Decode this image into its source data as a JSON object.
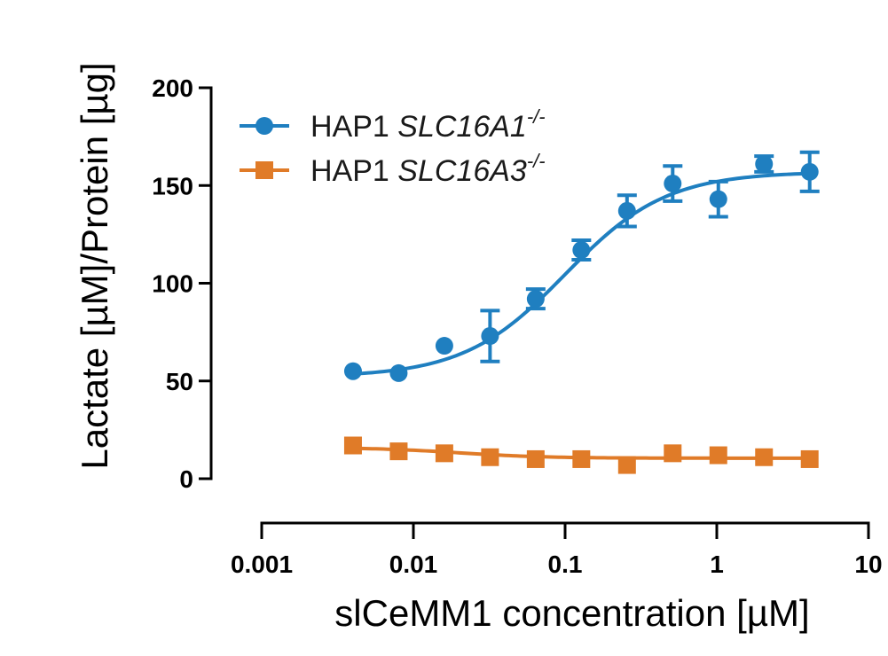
{
  "chart_data": {
    "type": "scatter",
    "title": "",
    "xlabel": "slCeMM1 concentration [µM]",
    "ylabel": "Lactate [µM]/Protein [µg]",
    "xscale": "log",
    "xlim": [
      0.001,
      10
    ],
    "ylim": [
      0,
      200
    ],
    "x_ticks": [
      0.001,
      0.01,
      0.1,
      1,
      10
    ],
    "x_tick_labels": [
      "0.001",
      "0.01",
      "0.1",
      "1",
      "10"
    ],
    "y_ticks": [
      0,
      50,
      100,
      150,
      200
    ],
    "y_tick_labels": [
      "0",
      "50",
      "100",
      "150",
      "200"
    ],
    "grid": false,
    "legend_position": "top-left",
    "series": [
      {
        "name": "HAP1 SLC16A1-/-",
        "legend_prefix": "HAP1 ",
        "legend_gene": "SLC16A1",
        "legend_superscript": "-/-",
        "color": "#1f7fc0",
        "marker": "circle",
        "x": [
          0.004,
          0.008,
          0.016,
          0.032,
          0.064,
          0.128,
          0.256,
          0.512,
          1.024,
          2.048,
          4.096
        ],
        "y": [
          55,
          54,
          68,
          73,
          92,
          117,
          137,
          151,
          143,
          161,
          157
        ],
        "err": [
          0,
          0,
          0,
          13,
          5,
          5,
          8,
          9,
          9,
          4,
          10
        ],
        "fit": {
          "bottom": 52,
          "top": 157,
          "ec50": 0.1,
          "hill": 1.3
        }
      },
      {
        "name": "HAP1 SLC16A3-/-",
        "legend_prefix": "HAP1 ",
        "legend_gene": "SLC16A3",
        "legend_superscript": "-/-",
        "color": "#e07b28",
        "marker": "square",
        "x": [
          0.004,
          0.008,
          0.016,
          0.032,
          0.064,
          0.128,
          0.256,
          0.512,
          1.024,
          2.048,
          4.096
        ],
        "y": [
          17,
          14,
          13,
          11,
          10,
          10,
          7,
          13,
          12,
          11,
          10
        ],
        "err": [
          0,
          0,
          0,
          0,
          0,
          0,
          0,
          0,
          0,
          0,
          0
        ],
        "fit": {
          "bottom": 16,
          "top": 10.5,
          "ec50": 0.02,
          "hill": 1.5
        }
      }
    ]
  }
}
